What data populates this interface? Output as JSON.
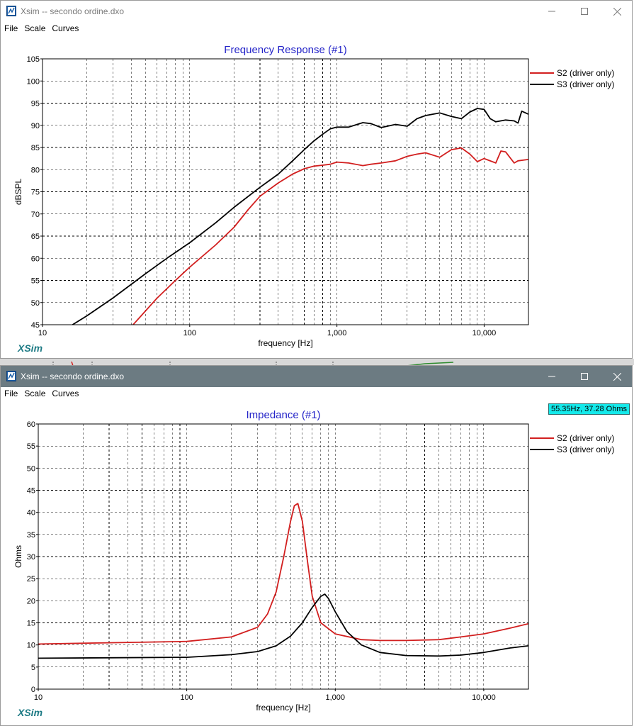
{
  "windows": [
    {
      "title": "Xsim -- secondo ordine.dxo",
      "menu": [
        "File",
        "Scale",
        "Curves"
      ],
      "logo": "XSim"
    },
    {
      "title": "Xsim -- secondo ordine.dxo",
      "menu": [
        "File",
        "Scale",
        "Curves"
      ],
      "logo": "XSim",
      "cursor_readout": "55.35Hz, 37.28 Ohms"
    }
  ],
  "icons": {
    "minimize": "minimize-icon",
    "maximize": "maximize-icon",
    "close": "close-icon",
    "app": "xsim-app-icon"
  },
  "colors": {
    "S2": "#d21f1f",
    "S3": "#000000",
    "title": "#2424c8",
    "logo": "#1e7b85",
    "readout_bg": "#13e9ea"
  },
  "chart_data": [
    {
      "type": "line",
      "title": "Frequency Response (#1)",
      "xlabel": "frequency [Hz]",
      "ylabel": "dBSPL",
      "xscale": "log",
      "xlim": [
        10,
        20000
      ],
      "ylim": [
        45,
        105
      ],
      "x_ticks": [
        10,
        100,
        1000,
        10000
      ],
      "x_tick_labels": [
        "10",
        "100",
        "1,000",
        "10,000"
      ],
      "y_ticks": [
        45,
        50,
        55,
        60,
        65,
        70,
        75,
        80,
        85,
        90,
        95,
        100,
        105
      ],
      "grid": true,
      "legend": "top-right",
      "series": [
        {
          "name": "S2 (driver only)",
          "x": [
            40,
            60,
            80,
            100,
            150,
            200,
            250,
            300,
            400,
            500,
            600,
            700,
            800,
            900,
            1000,
            1200,
            1500,
            1700,
            2000,
            2500,
            3000,
            3500,
            4000,
            5000,
            5500,
            6000,
            7000,
            8000,
            9000,
            10000,
            12000,
            13000,
            14000,
            16000,
            17000,
            20000
          ],
          "y": [
            44.5,
            51,
            55,
            58,
            63,
            67,
            71,
            74,
            77,
            79,
            80.2,
            80.8,
            81,
            81.2,
            81.7,
            81.5,
            80.9,
            81.2,
            81.5,
            82,
            83,
            83.5,
            83.8,
            82.8,
            83.7,
            84.5,
            84.9,
            83.5,
            81.8,
            82.5,
            81.5,
            84.2,
            84,
            81.5,
            82,
            82.3
          ]
        },
        {
          "name": "S3 (driver only)",
          "x": [
            16,
            20,
            30,
            50,
            70,
            100,
            150,
            200,
            300,
            400,
            500,
            600,
            700,
            800,
            900,
            1000,
            1200,
            1500,
            1700,
            2000,
            2500,
            3000,
            3500,
            4000,
            5000,
            6000,
            7000,
            8000,
            9000,
            10000,
            11000,
            12000,
            14000,
            16000,
            17000,
            18000,
            20000
          ],
          "y": [
            45,
            47,
            51,
            56.5,
            60,
            63.5,
            68,
            71.5,
            76,
            79,
            82,
            84.5,
            86.5,
            88,
            89.2,
            89.6,
            89.6,
            90.6,
            90.4,
            89.5,
            90.2,
            89.8,
            91.5,
            92.2,
            92.8,
            92,
            91.5,
            93,
            93.8,
            93.6,
            91.5,
            90.8,
            91.2,
            91,
            90.5,
            93.2,
            92.5
          ]
        }
      ]
    },
    {
      "type": "line",
      "title": "Impedance (#1)",
      "xlabel": "frequency [Hz]",
      "ylabel": "Ohms",
      "xscale": "log",
      "xlim": [
        10,
        20000
      ],
      "ylim": [
        0,
        60
      ],
      "x_ticks": [
        10,
        100,
        1000,
        10000
      ],
      "x_tick_labels": [
        "10",
        "100",
        "1,000",
        "10,000"
      ],
      "y_ticks": [
        0,
        5,
        10,
        15,
        20,
        25,
        30,
        35,
        40,
        45,
        50,
        55,
        60
      ],
      "grid": true,
      "legend": "top-right",
      "series": [
        {
          "name": "S2 (driver only)",
          "x": [
            10,
            30,
            100,
            200,
            300,
            350,
            400,
            450,
            500,
            530,
            560,
            600,
            650,
            700,
            800,
            1000,
            1500,
            2000,
            3000,
            5000,
            7000,
            10000,
            15000,
            20000
          ],
          "y": [
            10.2,
            10.5,
            10.8,
            11.8,
            14,
            17,
            22,
            30,
            38,
            41.5,
            42,
            38,
            29,
            21,
            15,
            12.5,
            11.2,
            11,
            11,
            11.2,
            11.8,
            12.5,
            13.8,
            14.8
          ]
        },
        {
          "name": "S3 (driver only)",
          "x": [
            10,
            100,
            200,
            300,
            400,
            500,
            600,
            700,
            800,
            850,
            900,
            1000,
            1200,
            1500,
            2000,
            3000,
            5000,
            7000,
            10000,
            15000,
            20000
          ],
          "y": [
            7,
            7.2,
            7.8,
            8.5,
            9.8,
            12,
            15,
            18.5,
            21,
            21.5,
            20.5,
            17.5,
            13,
            10,
            8.3,
            7.6,
            7.5,
            7.7,
            8.3,
            9.3,
            9.8
          ]
        }
      ]
    }
  ]
}
